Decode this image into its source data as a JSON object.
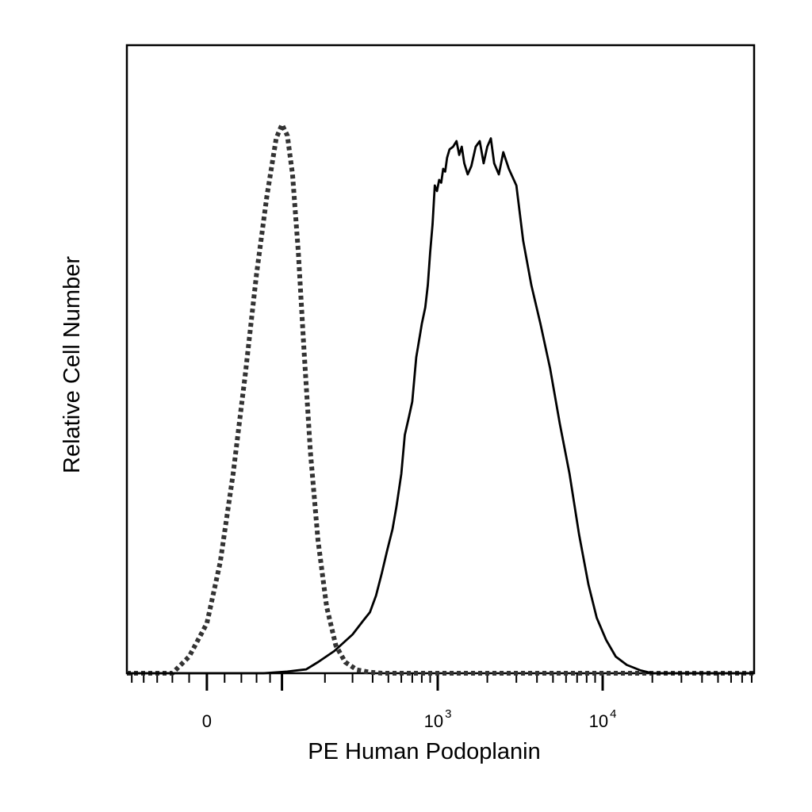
{
  "chart_data": {
    "type": "line",
    "title": "",
    "xlabel": "PE Human Podoplanin",
    "ylabel": "Relative Cell Number",
    "x_scale": "biexponential",
    "x_ticks": [
      {
        "value": 0,
        "base": "0",
        "exp": ""
      },
      {
        "value": 1000,
        "base": "10",
        "exp": "3"
      },
      {
        "value": 10000,
        "base": "10",
        "exp": "4"
      }
    ],
    "xlim": [
      -250,
      60000
    ],
    "ylim": [
      0,
      100
    ],
    "grid": false,
    "legend": "none",
    "series": [
      {
        "style": "dotted",
        "color": "#333333",
        "x": [
          -40,
          -20,
          0,
          15,
          30,
          45,
          60,
          75,
          90,
          100,
          110,
          120,
          132,
          145,
          160,
          180,
          205,
          235,
          270,
          320,
          380,
          460
        ],
        "y": [
          0,
          3,
          9,
          20,
          36,
          54,
          72,
          86,
          96.5,
          99,
          97,
          90,
          76,
          58,
          40,
          24,
          12,
          5,
          2,
          0.6,
          0.2,
          0
        ]
      },
      {
        "style": "solid",
        "color": "#000000",
        "x": [
          70,
          110,
          150,
          180,
          230,
          300,
          350,
          385,
          420,
          455,
          490,
          530,
          560,
          600,
          630,
          665,
          700,
          740,
          780,
          800,
          840,
          870,
          900,
          930,
          960,
          990,
          1020,
          1050,
          1080,
          1110,
          1140,
          1180,
          1240,
          1300,
          1350,
          1400,
          1450,
          1520,
          1600,
          1700,
          1800,
          1900,
          2000,
          2100,
          2200,
          2350,
          2500,
          2700,
          3000,
          3300,
          3700,
          4200,
          4800,
          5500,
          6300,
          7200,
          8200,
          9200,
          10500,
          12000,
          14000,
          17000,
          20000
        ],
        "y": [
          0,
          0.3,
          0.7,
          2,
          4,
          7,
          9.5,
          11,
          14,
          18,
          22,
          26,
          30,
          36,
          43,
          46,
          49,
          57,
          61,
          63,
          66,
          70,
          76,
          81,
          88,
          87,
          89,
          88.5,
          91,
          90.5,
          93,
          94.5,
          95,
          96,
          93.5,
          95,
          92,
          90,
          91.5,
          95,
          96,
          92,
          95,
          96.5,
          92,
          90,
          94,
          91,
          88,
          78,
          70,
          63,
          55,
          45,
          36,
          25,
          16,
          10,
          6,
          3,
          1.5,
          0.5,
          0
        ]
      }
    ]
  }
}
